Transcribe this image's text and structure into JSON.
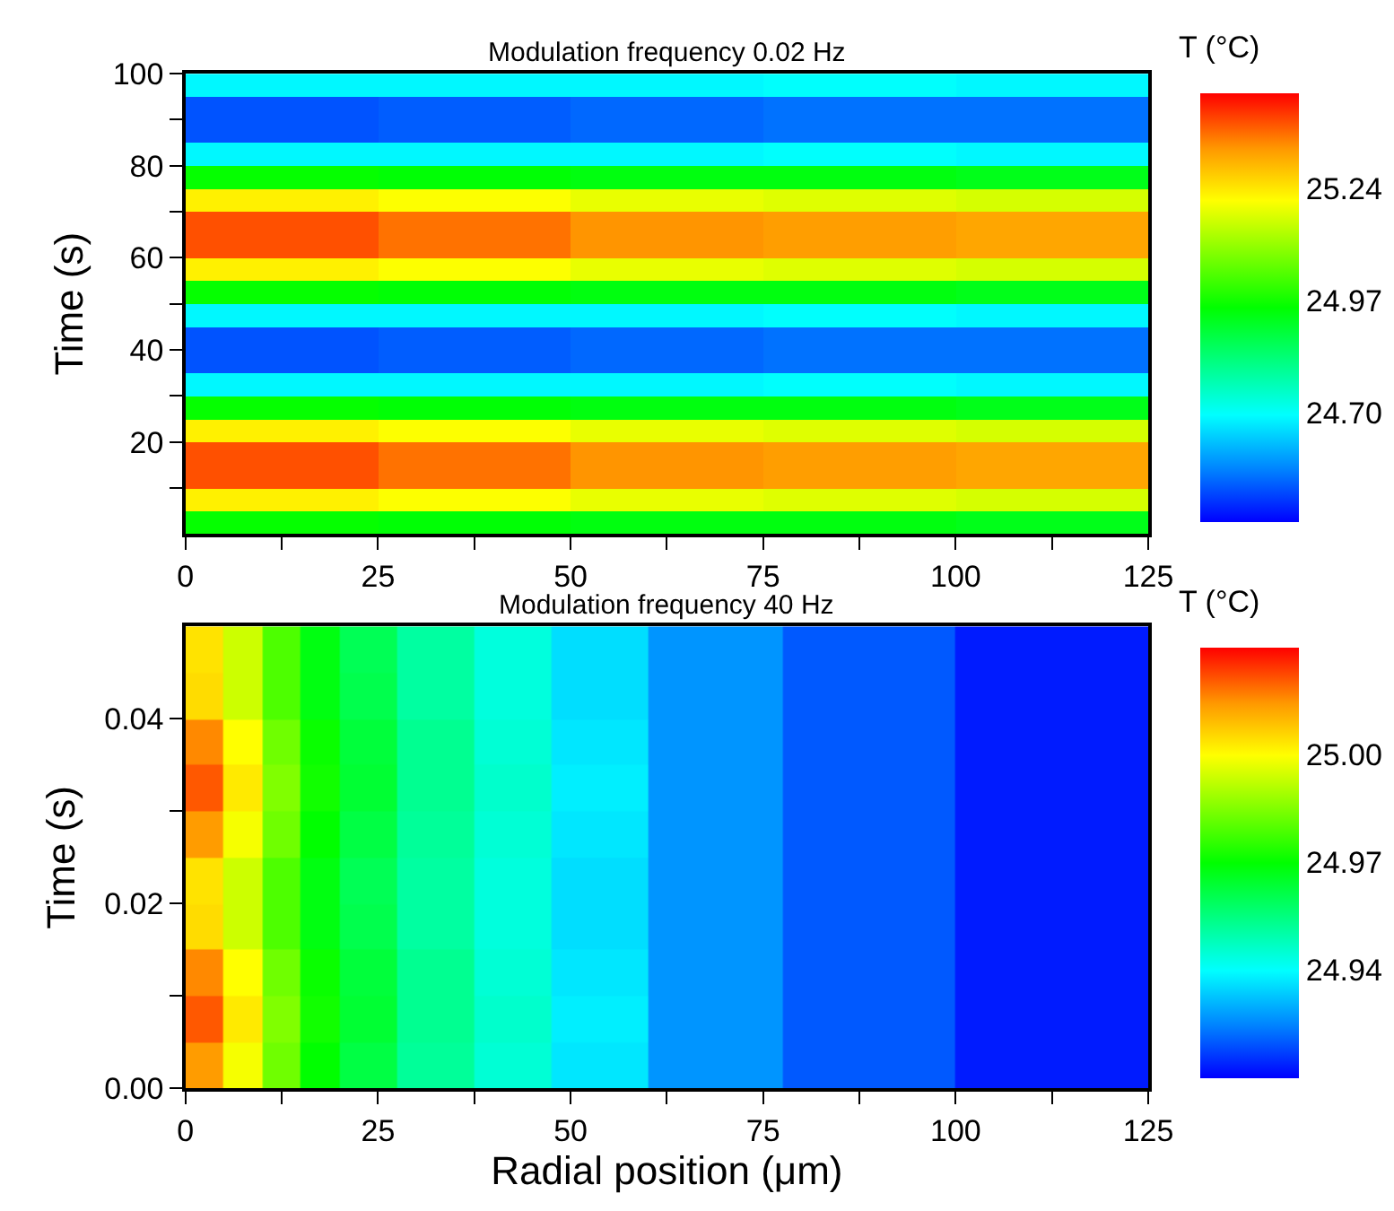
{
  "chart_data": [
    {
      "type": "heatmap",
      "title": "Modulation frequency 0.02 Hz",
      "ylabel": "Time (s)",
      "clabel": "T (°C)",
      "x": [
        12.5,
        37.5,
        62.5,
        87.5,
        112.5
      ],
      "y": [
        97.5,
        92.5,
        87.5,
        82.5,
        77.5,
        72.5,
        67.5,
        62.5,
        57.5,
        52.5,
        47.5,
        42.5,
        37.5,
        32.5,
        27.5,
        22.5,
        17.5,
        12.5,
        7.5,
        2.5
      ],
      "cells": [
        [
          24.69,
          24.69,
          24.69,
          24.7,
          24.69
        ],
        [
          24.52,
          24.53,
          24.54,
          24.55,
          24.55
        ],
        [
          24.52,
          24.53,
          24.54,
          24.55,
          24.55
        ],
        [
          24.69,
          24.69,
          24.69,
          24.7,
          24.69
        ],
        [
          24.96,
          24.95,
          24.94,
          24.94,
          24.93
        ],
        [
          25.23,
          25.21,
          25.19,
          25.18,
          25.17
        ],
        [
          25.4,
          25.37,
          25.34,
          25.33,
          25.32
        ],
        [
          25.4,
          25.37,
          25.34,
          25.33,
          25.32
        ],
        [
          25.23,
          25.21,
          25.19,
          25.18,
          25.17
        ],
        [
          24.96,
          24.95,
          24.94,
          24.94,
          24.93
        ],
        [
          24.69,
          24.69,
          24.69,
          24.7,
          24.69
        ],
        [
          24.52,
          24.53,
          24.54,
          24.55,
          24.55
        ],
        [
          24.52,
          24.53,
          24.54,
          24.55,
          24.55
        ],
        [
          24.69,
          24.69,
          24.69,
          24.7,
          24.69
        ],
        [
          24.96,
          24.95,
          24.94,
          24.94,
          24.93
        ],
        [
          25.23,
          25.21,
          25.19,
          25.18,
          25.17
        ],
        [
          25.4,
          25.37,
          25.34,
          25.33,
          25.32
        ],
        [
          25.4,
          25.37,
          25.34,
          25.33,
          25.32
        ],
        [
          25.23,
          25.21,
          25.19,
          25.18,
          25.17
        ],
        [
          24.96,
          24.95,
          24.94,
          24.94,
          24.93
        ]
      ],
      "xlim": [
        0,
        125
      ],
      "xticks": [
        0,
        {
          "value": 12.5,
          "label": null
        },
        25,
        {
          "value": 37.5,
          "label": null
        },
        50,
        {
          "value": 62.5,
          "label": null
        },
        75,
        {
          "value": 87.5,
          "label": null
        },
        100,
        {
          "value": 112.5,
          "label": null
        },
        125
      ],
      "ylim": [
        0,
        100
      ],
      "yticks": [
        {
          "value": 10,
          "label": null
        },
        20,
        {
          "value": 30,
          "label": null
        },
        40,
        {
          "value": 50,
          "label": null
        },
        60,
        {
          "value": 70,
          "label": null
        },
        80,
        {
          "value": 90,
          "label": null
        },
        100
      ],
      "clim": [
        24.44,
        25.47
      ],
      "cticks": [
        {
          "value": 24.7,
          "label": "24.70"
        },
        24.97,
        25.24
      ]
    },
    {
      "type": "heatmap",
      "title": "Modulation frequency 40 Hz",
      "xlabel": "Radial position (μm)",
      "ylabel": "Time (s)",
      "clabel": "T (°C)",
      "x": [
        2.5,
        7.5,
        12.5,
        17.5,
        22.5,
        32.5,
        42.5,
        52.5,
        67.5,
        87.5,
        112.5
      ],
      "y": [
        0.0475,
        0.0425,
        0.0375,
        0.0325,
        0.0275,
        0.0225,
        0.0175,
        0.0125,
        0.0075,
        0.0025
      ],
      "cells": [
        [
          25.004,
          24.994,
          24.979,
          24.968,
          24.96,
          24.951,
          24.944,
          24.936,
          24.927,
          24.92,
          24.913
        ],
        [
          25.005,
          24.994,
          24.979,
          24.968,
          24.961,
          24.951,
          24.944,
          24.936,
          24.927,
          24.92,
          24.913
        ],
        [
          25.016,
          25.0,
          24.983,
          24.971,
          24.963,
          24.953,
          24.945,
          24.937,
          24.927,
          24.92,
          24.913
        ],
        [
          25.021,
          25.003,
          24.985,
          24.972,
          24.964,
          24.953,
          24.946,
          24.938,
          24.927,
          24.92,
          24.913
        ],
        [
          25.014,
          24.999,
          24.983,
          24.97,
          24.962,
          24.952,
          24.945,
          24.937,
          24.927,
          24.92,
          24.913
        ],
        [
          25.004,
          24.994,
          24.979,
          24.968,
          24.96,
          24.951,
          24.944,
          24.936,
          24.927,
          24.92,
          24.913
        ],
        [
          25.005,
          24.994,
          24.979,
          24.968,
          24.961,
          24.951,
          24.944,
          24.936,
          24.927,
          24.92,
          24.913
        ],
        [
          25.016,
          25.0,
          24.983,
          24.971,
          24.963,
          24.953,
          24.945,
          24.937,
          24.927,
          24.92,
          24.913
        ],
        [
          25.021,
          25.003,
          24.985,
          24.972,
          24.964,
          24.953,
          24.946,
          24.938,
          24.927,
          24.92,
          24.913
        ],
        [
          25.014,
          24.999,
          24.983,
          24.97,
          24.962,
          24.952,
          24.945,
          24.937,
          24.927,
          24.92,
          24.913
        ]
      ],
      "xlim": [
        0,
        125
      ],
      "xticks": [
        0,
        {
          "value": 12.5,
          "label": null
        },
        25,
        {
          "value": 37.5,
          "label": null
        },
        50,
        {
          "value": 62.5,
          "label": null
        },
        75,
        {
          "value": 87.5,
          "label": null
        },
        100,
        {
          "value": 112.5,
          "label": null
        },
        125
      ],
      "ylim": [
        0,
        0.05
      ],
      "yticks": [
        {
          "value": 0,
          "label": "0.00"
        },
        {
          "value": 0.01,
          "label": null
        },
        0.02,
        {
          "value": 0.03,
          "label": null
        },
        0.04
      ],
      "clim": [
        24.91,
        25.03
      ],
      "cticks": [
        24.94,
        24.97,
        {
          "value": 25.0,
          "label": "25.00"
        }
      ]
    }
  ]
}
